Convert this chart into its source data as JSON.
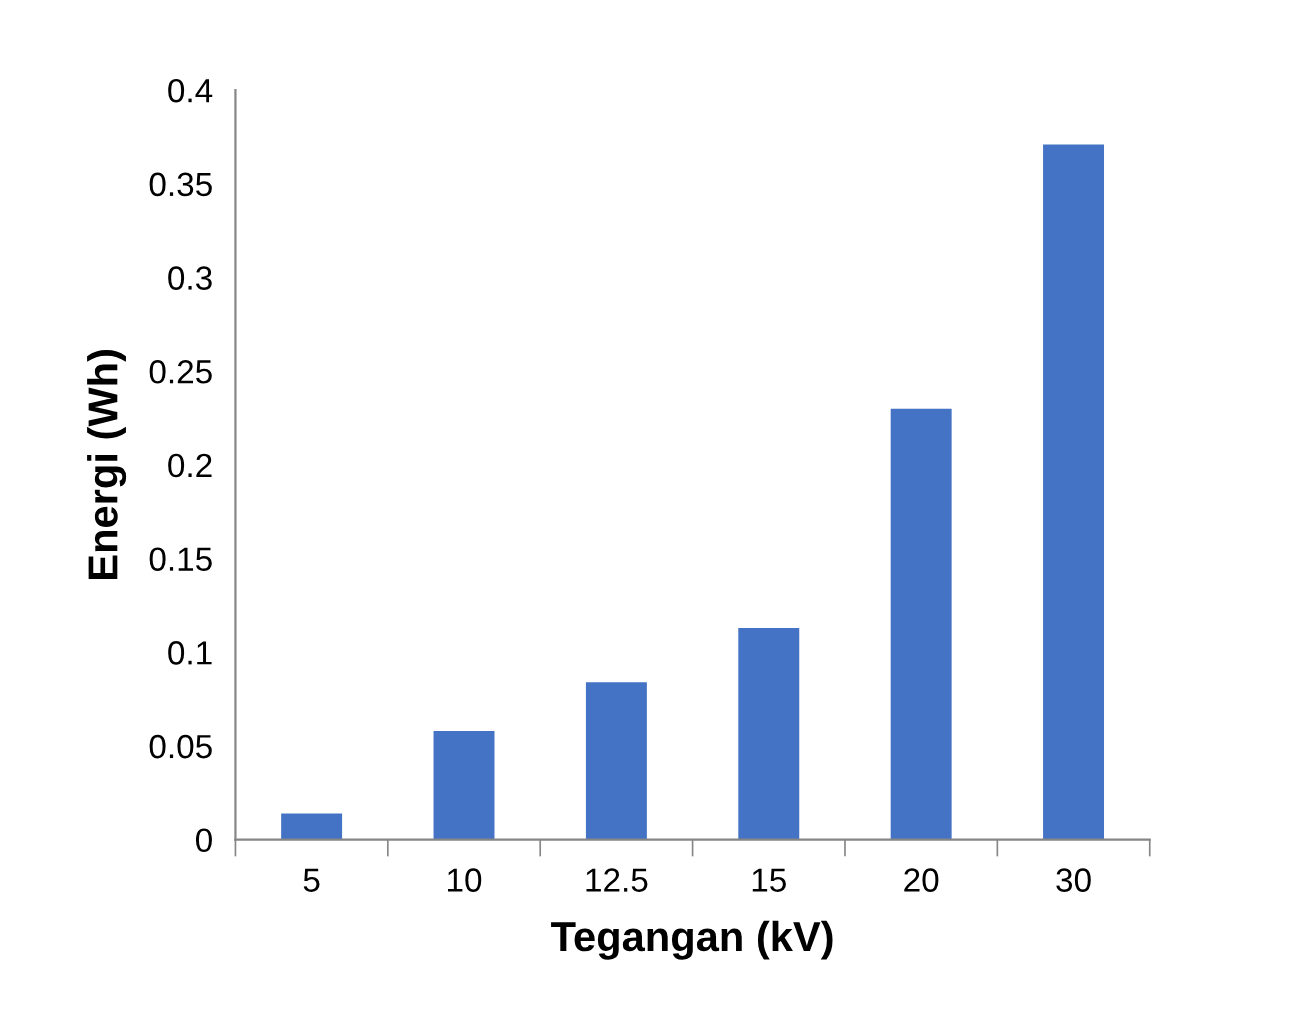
{
  "chart_data": {
    "type": "bar",
    "xlabel": "Tegangan (kV)",
    "ylabel": "Energi (Wh)",
    "categories": [
      "5",
      "10",
      "12.5",
      "15",
      "20",
      "30"
    ],
    "values": [
      0.014,
      0.058,
      0.084,
      0.113,
      0.23,
      0.371
    ],
    "color": "#4472c4",
    "ylim": [
      0,
      0.4
    ],
    "yticks": [
      0,
      0.05,
      0.1,
      0.15,
      0.2,
      0.25,
      0.3,
      0.35,
      0.4
    ],
    "grid": false,
    "legend": false
  }
}
